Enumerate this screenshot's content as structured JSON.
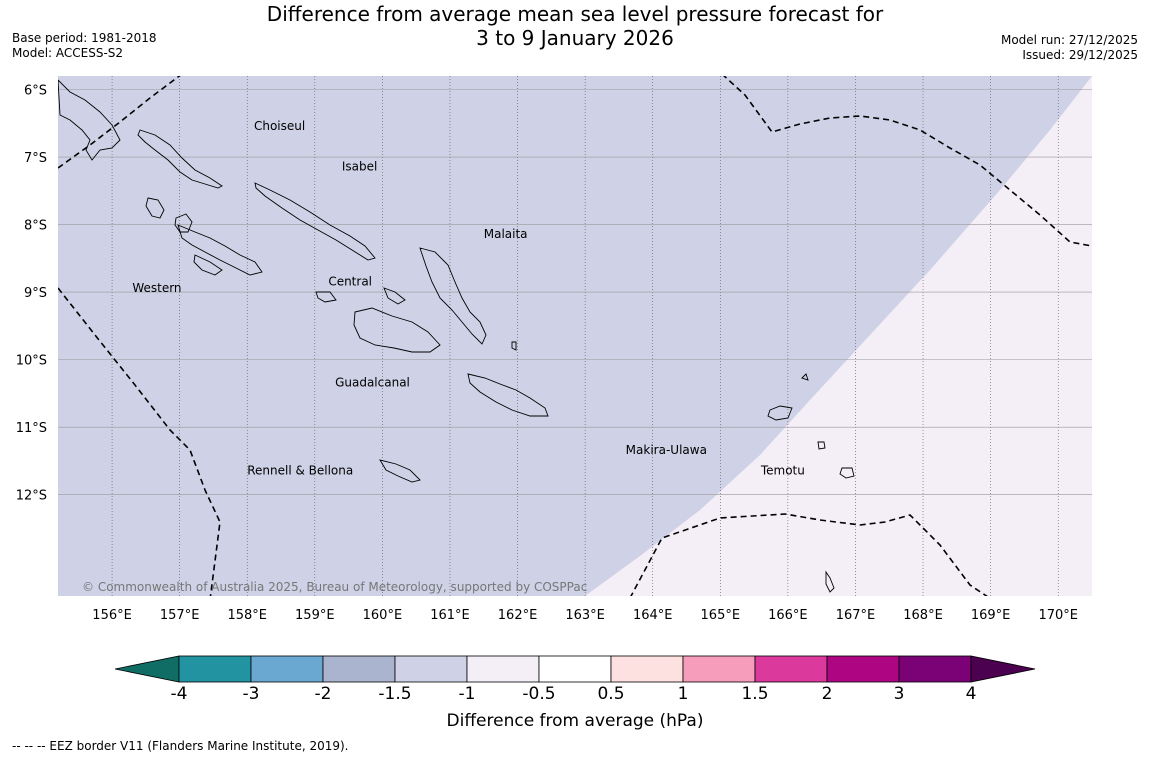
{
  "title": {
    "line1": "Difference from average mean sea level pressure forecast for",
    "line2": "3 to 9 January 2026"
  },
  "meta_left": {
    "base_period": "Base period: 1981-2018",
    "model": "Model: ACCESS-S2"
  },
  "meta_right": {
    "model_run": "Model run: 27/12/2025",
    "issued": "Issued: 29/12/2025"
  },
  "map": {
    "lon_range": [
      155.2,
      170.5
    ],
    "lat_range": [
      -13.5,
      -5.8
    ],
    "lon_ticks": [
      "156°E",
      "157°E",
      "158°E",
      "159°E",
      "160°E",
      "161°E",
      "162°E",
      "163°E",
      "164°E",
      "165°E",
      "166°E",
      "167°E",
      "168°E",
      "169°E",
      "170°E"
    ],
    "lat_ticks": [
      "6°S",
      "7°S",
      "8°S",
      "9°S",
      "10°S",
      "11°S",
      "12°S"
    ],
    "regions": [
      {
        "label": "Choiseul",
        "lon": 158.1,
        "lat": -6.6
      },
      {
        "label": "Isabel",
        "lon": 159.4,
        "lat": -7.2
      },
      {
        "label": "Malaita",
        "lon": 161.5,
        "lat": -8.2
      },
      {
        "label": "Western",
        "lon": 156.3,
        "lat": -9.0
      },
      {
        "label": "Central",
        "lon": 159.2,
        "lat": -8.9
      },
      {
        "label": "Guadalcanal",
        "lon": 159.3,
        "lat": -10.4
      },
      {
        "label": "Makira-Ulawa",
        "lon": 163.6,
        "lat": -11.4
      },
      {
        "label": "Temotu",
        "lon": 165.6,
        "lat": -11.7
      },
      {
        "label": "Rennell & Bellona",
        "lon": 158.0,
        "lat": -11.7
      }
    ],
    "copyright": "© Commonwealth of Australia 2025, Bureau of Meteorology, supported by COSPPac",
    "fill_colors": {
      "main": "#cfd1e6",
      "light": "#f4eef6",
      "coast": "#000000"
    }
  },
  "colorbar": {
    "colors": [
      "#0f6d66",
      "#2293a0",
      "#6aa8d2",
      "#aab4cf",
      "#cfd1e6",
      "#f4eef6",
      "#ffffff",
      "#fde0e0",
      "#f59dbb",
      "#db3a9c",
      "#ae0583",
      "#7a0176",
      "#4c0050"
    ],
    "tick_labels": [
      "-4",
      "-3",
      "-2",
      "-1.5",
      "-1",
      "-0.5",
      "0.5",
      "1",
      "1.5",
      "2",
      "3",
      "4"
    ],
    "label": "Difference from average (hPa)"
  },
  "footnote": "--  --  -- EEZ border V11 (Flanders Marine Institute, 2019)."
}
